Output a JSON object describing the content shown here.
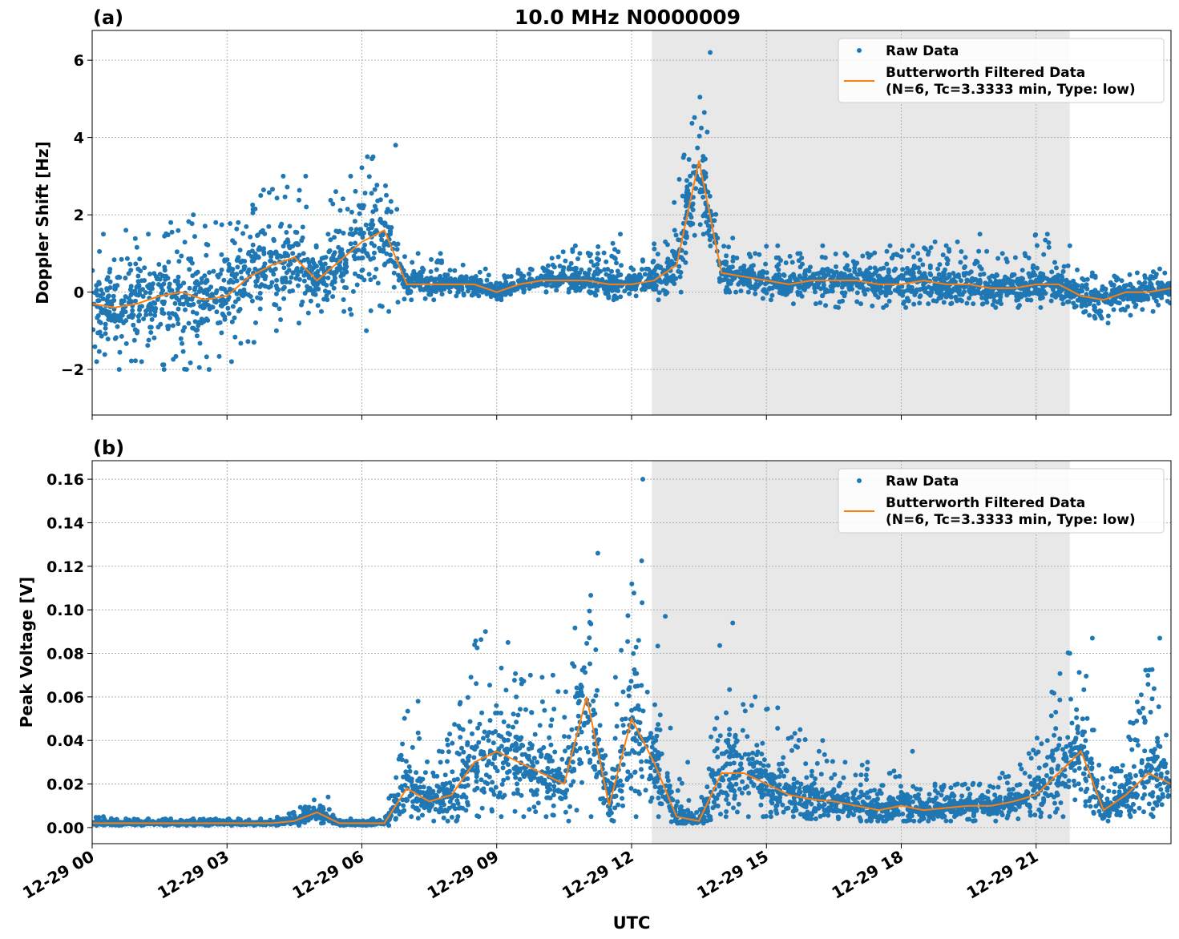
{
  "title": "10.0 MHz N0000009",
  "xlabel": "UTC",
  "x_tick_labels": [
    "12-29 00",
    "12-29 03",
    "12-29 06",
    "12-29 09",
    "12-29 12",
    "12-29 15",
    "12-29 18",
    "12-29 21"
  ],
  "x_tick_hours": [
    0,
    3,
    6,
    9,
    12,
    15,
    18,
    21
  ],
  "xlim_hours": [
    0,
    24
  ],
  "shaded_interval_hours": [
    12.45,
    21.75
  ],
  "colors": {
    "raw": "#1f77b4",
    "filtered": "#ff7f0e",
    "shade": "#e8e8e8",
    "grid": "#b0b0b0"
  },
  "legend": {
    "raw": "Raw Data",
    "filtered_line1": "Butterworth Filtered Data",
    "filtered_line2": "(N=6, Tc=3.3333 min, Type: low)",
    "placement": "upper-right"
  },
  "chart_data": [
    {
      "panel_label": "(a)",
      "type": "scatter+line",
      "ylabel": "Doppler Shift [Hz]",
      "ylim": [
        -3.18,
        6.77
      ],
      "y_ticks": [
        -2,
        0,
        2,
        4,
        6
      ],
      "y_tick_labels": [
        "−2",
        "0",
        "2",
        "4",
        "6"
      ],
      "grid": true,
      "x_hours": [
        0,
        0.5,
        1,
        1.5,
        2,
        2.5,
        3,
        3.5,
        4,
        4.5,
        5,
        5.5,
        6,
        6.5,
        7,
        7.5,
        8,
        8.5,
        9,
        9.5,
        10,
        10.5,
        11,
        11.5,
        12,
        12.5,
        13,
        13.5,
        14,
        14.5,
        15,
        15.5,
        16,
        16.5,
        17,
        17.5,
        18,
        18.5,
        19,
        19.5,
        20,
        20.5,
        21,
        21.5,
        22,
        22.5,
        23,
        23.5,
        24
      ],
      "raw_min": [
        -1.8,
        -2.0,
        -1.8,
        -2.0,
        -2.0,
        -2.0,
        -1.8,
        -1.3,
        -1.0,
        -0.8,
        -0.5,
        -0.5,
        -1.0,
        -0.5,
        -0.2,
        -0.2,
        -0.1,
        -0.1,
        -0.2,
        0.0,
        0.0,
        0.0,
        0.0,
        -0.2,
        -0.1,
        -0.2,
        0.0,
        1.5,
        0.0,
        0.0,
        -0.2,
        -0.3,
        -0.3,
        -0.4,
        -0.3,
        -0.4,
        -0.4,
        -0.3,
        -0.3,
        -0.3,
        -0.4,
        -0.4,
        -0.4,
        -0.3,
        -0.5,
        -0.8,
        -0.6,
        -0.5,
        -0.3
      ],
      "raw_max": [
        1.5,
        1.6,
        1.5,
        1.8,
        2.0,
        1.8,
        1.8,
        2.5,
        3.0,
        3.0,
        1.5,
        3.0,
        3.5,
        3.8,
        1.0,
        1.0,
        0.7,
        0.6,
        0.4,
        0.6,
        0.7,
        1.2,
        1.0,
        1.5,
        0.8,
        1.3,
        2.5,
        6.2,
        1.4,
        1.0,
        1.2,
        1.0,
        1.2,
        1.0,
        1.0,
        1.2,
        1.2,
        1.3,
        1.3,
        1.5,
        1.0,
        1.0,
        1.5,
        1.2,
        0.5,
        0.4,
        0.5,
        0.6,
        0.5
      ],
      "filtered": [
        -0.3,
        -0.4,
        -0.3,
        -0.1,
        0.0,
        -0.2,
        -0.1,
        0.4,
        0.7,
        0.9,
        0.3,
        0.8,
        1.3,
        1.6,
        0.2,
        0.2,
        0.2,
        0.2,
        0.0,
        0.2,
        0.3,
        0.3,
        0.3,
        0.2,
        0.2,
        0.3,
        0.7,
        3.4,
        0.5,
        0.4,
        0.3,
        0.2,
        0.3,
        0.3,
        0.3,
        0.2,
        0.2,
        0.3,
        0.2,
        0.2,
        0.1,
        0.1,
        0.2,
        0.2,
        -0.1,
        -0.2,
        0.0,
        0.0,
        0.1
      ]
    },
    {
      "panel_label": "(b)",
      "type": "scatter+line",
      "ylabel": "Peak Voltage [V]",
      "ylim": [
        -0.0074,
        0.1685
      ],
      "y_ticks": [
        0,
        0.02,
        0.04,
        0.06,
        0.08,
        0.1,
        0.12,
        0.14,
        0.16
      ],
      "y_tick_labels": [
        "0.00",
        "0.02",
        "0.04",
        "0.06",
        "0.08",
        "0.10",
        "0.12",
        "0.14",
        "0.16"
      ],
      "grid": true,
      "x_hours": [
        0,
        0.5,
        1,
        1.5,
        2,
        2.5,
        3,
        3.5,
        4,
        4.5,
        5,
        5.5,
        6,
        6.5,
        7,
        7.5,
        8,
        8.5,
        9,
        9.5,
        10,
        10.5,
        11,
        11.5,
        12,
        12.5,
        13,
        13.5,
        14,
        14.5,
        15,
        15.5,
        16,
        16.5,
        17,
        17.5,
        18,
        18.5,
        19,
        19.5,
        20,
        20.5,
        21,
        21.5,
        22,
        22.5,
        23,
        23.5,
        24
      ],
      "raw_min": [
        0.001,
        0.001,
        0.001,
        0.001,
        0.001,
        0.001,
        0.001,
        0.001,
        0.001,
        0.001,
        0.002,
        0.001,
        0.001,
        0.001,
        0.005,
        0.003,
        0.003,
        0.005,
        0.005,
        0.005,
        0.005,
        0.003,
        0.005,
        0.003,
        0.005,
        0.005,
        0.002,
        0.002,
        0.005,
        0.005,
        0.005,
        0.005,
        0.004,
        0.004,
        0.003,
        0.003,
        0.003,
        0.003,
        0.003,
        0.003,
        0.003,
        0.004,
        0.005,
        0.005,
        0.01,
        0.003,
        0.005,
        0.005,
        0.008
      ],
      "raw_max": [
        0.005,
        0.004,
        0.004,
        0.004,
        0.004,
        0.004,
        0.004,
        0.004,
        0.004,
        0.008,
        0.014,
        0.004,
        0.004,
        0.004,
        0.058,
        0.03,
        0.045,
        0.09,
        0.085,
        0.07,
        0.07,
        0.06,
        0.126,
        0.035,
        0.16,
        0.097,
        0.03,
        0.005,
        0.094,
        0.06,
        0.055,
        0.045,
        0.04,
        0.03,
        0.03,
        0.025,
        0.035,
        0.02,
        0.02,
        0.02,
        0.025,
        0.025,
        0.04,
        0.08,
        0.087,
        0.02,
        0.04,
        0.087,
        0.045
      ],
      "filtered": [
        0.002,
        0.002,
        0.002,
        0.002,
        0.002,
        0.002,
        0.002,
        0.002,
        0.002,
        0.003,
        0.007,
        0.002,
        0.002,
        0.002,
        0.018,
        0.012,
        0.015,
        0.03,
        0.035,
        0.03,
        0.025,
        0.02,
        0.06,
        0.01,
        0.05,
        0.03,
        0.005,
        0.003,
        0.025,
        0.025,
        0.02,
        0.015,
        0.013,
        0.012,
        0.01,
        0.008,
        0.01,
        0.008,
        0.009,
        0.01,
        0.01,
        0.012,
        0.015,
        0.025,
        0.035,
        0.008,
        0.015,
        0.025,
        0.02
      ]
    }
  ]
}
